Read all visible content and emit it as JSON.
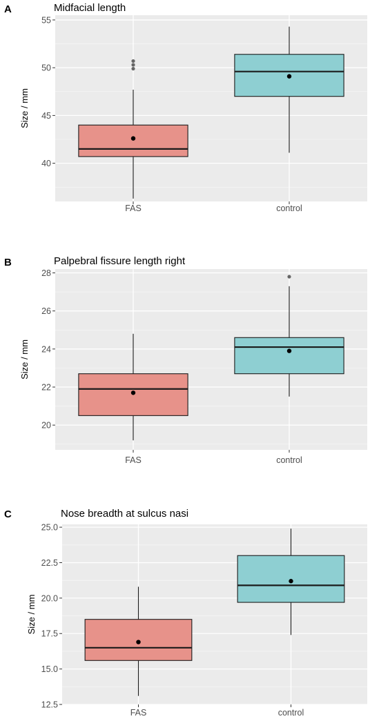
{
  "figure": {
    "panels": [
      {
        "letter": "A",
        "title": "Midfacial length",
        "ylabel": "Size / mm"
      },
      {
        "letter": "B",
        "title": "Palpebral fissure length right",
        "ylabel": "Size / mm"
      },
      {
        "letter": "C",
        "title": "Nose breadth at sulcus nasi",
        "ylabel": "Size / mm"
      }
    ]
  },
  "chart_data": [
    {
      "type": "boxplot",
      "title": "Midfacial length",
      "ylabel": "Size / mm",
      "xlabel": "",
      "categories": [
        "FAS",
        "control"
      ],
      "yticks": [
        "40",
        "45",
        "50",
        "55"
      ],
      "ylim": [
        36.0,
        55.5
      ],
      "grid": true,
      "boxes": [
        {
          "category": "FAS",
          "color": "#E7928A",
          "min": 36.3,
          "q1": 40.7,
          "median": 41.5,
          "q3": 44.0,
          "max": 47.7,
          "mean": 42.6,
          "outliers": [
            49.9,
            50.3,
            50.7
          ]
        },
        {
          "category": "control",
          "color": "#8ECFD2",
          "min": 41.1,
          "q1": 47.0,
          "median": 49.6,
          "q3": 51.4,
          "max": 54.3,
          "mean": 49.1,
          "outliers": []
        }
      ]
    },
    {
      "type": "boxplot",
      "title": "Palpebral fissure length right",
      "ylabel": "Size / mm",
      "xlabel": "",
      "categories": [
        "FAS",
        "control"
      ],
      "yticks": [
        "20",
        "22",
        "24",
        "26",
        "28"
      ],
      "ylim": [
        18.7,
        28.2
      ],
      "grid": true,
      "boxes": [
        {
          "category": "FAS",
          "color": "#E7928A",
          "min": 19.2,
          "q1": 20.5,
          "median": 21.9,
          "q3": 22.7,
          "max": 24.8,
          "mean": 21.7,
          "outliers": []
        },
        {
          "category": "control",
          "color": "#8ECFD2",
          "min": 21.5,
          "q1": 22.7,
          "median": 24.1,
          "q3": 24.6,
          "max": 27.3,
          "mean": 23.9,
          "outliers": [
            27.8
          ]
        }
      ]
    },
    {
      "type": "boxplot",
      "title": "Nose breadth at sulcus nasi",
      "ylabel": "Size / mm",
      "xlabel": "",
      "categories": [
        "FAS",
        "control"
      ],
      "yticks": [
        "12.5",
        "15.0",
        "17.5",
        "20.0",
        "22.5",
        "25.0"
      ],
      "ylim": [
        12.5,
        25.2
      ],
      "grid": true,
      "boxes": [
        {
          "category": "FAS",
          "color": "#E7928A",
          "min": 13.1,
          "q1": 15.6,
          "median": 16.5,
          "q3": 18.5,
          "max": 20.8,
          "mean": 16.9,
          "outliers": []
        },
        {
          "category": "control",
          "color": "#8ECFD2",
          "min": 17.4,
          "q1": 19.7,
          "median": 20.9,
          "q3": 23.0,
          "max": 24.9,
          "mean": 21.2,
          "outliers": []
        }
      ]
    }
  ]
}
